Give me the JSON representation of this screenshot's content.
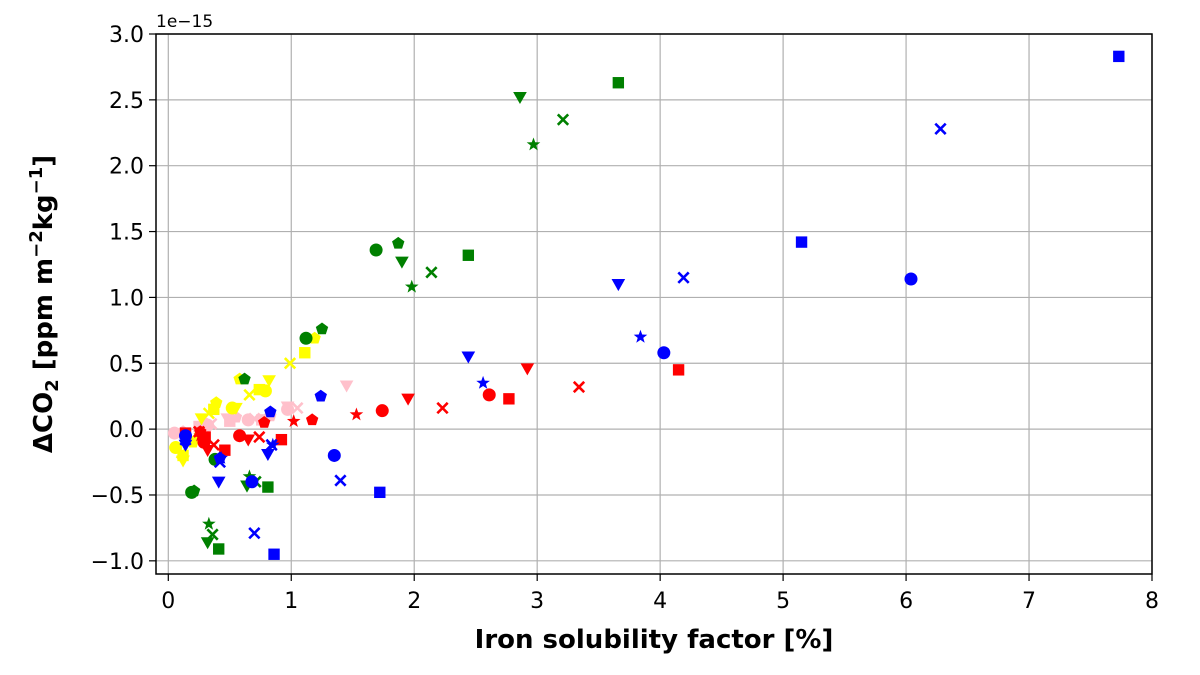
{
  "chart_data": {
    "type": "scatter",
    "title": "",
    "xlabel": "Iron solubility factor [%]",
    "ylabel_parts": [
      "ΔCO",
      "2",
      " [ppm m",
      "−2",
      "kg",
      "−1",
      "]"
    ],
    "y_offset_label": "1e−15",
    "xlim": [
      -0.1,
      8.0
    ],
    "ylim": [
      -1.1,
      3.0
    ],
    "x_ticks": [
      0,
      1,
      2,
      3,
      4,
      5,
      6,
      7,
      8
    ],
    "x_tick_labels": [
      "0",
      "1",
      "2",
      "3",
      "4",
      "5",
      "6",
      "7",
      "8"
    ],
    "y_ticks": [
      -1.0,
      -0.5,
      0.0,
      0.5,
      1.0,
      1.5,
      2.0,
      2.5,
      3.0
    ],
    "y_tick_labels": [
      "−1.0",
      "−0.5",
      "0.0",
      "0.5",
      "1.0",
      "1.5",
      "2.0",
      "2.5",
      "3.0"
    ],
    "grid": true,
    "legend": "none",
    "colors": {
      "blue": "#0000ff",
      "green": "#008000",
      "red": "#ff0000",
      "yellow": "#ffff00",
      "pink": "#ffc0cb"
    },
    "series": [
      {
        "color": "blue",
        "marker": "square",
        "points": [
          [
            7.73,
            2.83
          ],
          [
            5.15,
            1.42
          ],
          [
            1.72,
            -0.48
          ],
          [
            0.86,
            -0.95
          ]
        ]
      },
      {
        "color": "blue",
        "marker": "x",
        "points": [
          [
            6.28,
            2.28
          ],
          [
            4.19,
            1.15
          ],
          [
            1.4,
            -0.39
          ],
          [
            0.7,
            -0.79
          ],
          [
            0.84,
            -0.12
          ],
          [
            0.42,
            -0.25
          ],
          [
            0.14,
            -0.08
          ]
        ]
      },
      {
        "color": "blue",
        "marker": "circle",
        "points": [
          [
            6.04,
            1.14
          ],
          [
            4.03,
            0.58
          ],
          [
            1.35,
            -0.2
          ],
          [
            0.68,
            -0.4
          ],
          [
            0.14,
            -0.05
          ]
        ]
      },
      {
        "color": "blue",
        "marker": "triangle-down",
        "points": [
          [
            3.66,
            1.1
          ],
          [
            2.44,
            0.55
          ],
          [
            0.81,
            -0.19
          ],
          [
            0.41,
            -0.4
          ],
          [
            0.14,
            -0.12
          ]
        ]
      },
      {
        "color": "blue",
        "marker": "star",
        "points": [
          [
            3.84,
            0.7
          ],
          [
            2.56,
            0.35
          ],
          [
            0.85,
            -0.12
          ],
          [
            0.43,
            -0.22
          ]
        ]
      },
      {
        "color": "blue",
        "marker": "pentagon",
        "points": [
          [
            1.24,
            0.25
          ],
          [
            0.83,
            0.13
          ],
          [
            0.42,
            -0.22
          ]
        ]
      },
      {
        "color": "green",
        "marker": "square",
        "points": [
          [
            3.66,
            2.63
          ],
          [
            2.44,
            1.32
          ],
          [
            0.81,
            -0.44
          ],
          [
            0.41,
            -0.91
          ]
        ]
      },
      {
        "color": "green",
        "marker": "triangle-down",
        "points": [
          [
            2.86,
            2.52
          ],
          [
            1.9,
            1.27
          ],
          [
            0.64,
            -0.43
          ],
          [
            0.32,
            -0.86
          ]
        ]
      },
      {
        "color": "green",
        "marker": "x",
        "points": [
          [
            3.21,
            2.35
          ],
          [
            2.14,
            1.19
          ],
          [
            0.71,
            -0.4
          ],
          [
            0.36,
            -0.8
          ]
        ]
      },
      {
        "color": "green",
        "marker": "star",
        "points": [
          [
            2.97,
            2.16
          ],
          [
            1.98,
            1.08
          ],
          [
            0.66,
            -0.36
          ],
          [
            0.33,
            -0.72
          ]
        ]
      },
      {
        "color": "green",
        "marker": "circle",
        "points": [
          [
            1.69,
            1.36
          ],
          [
            1.12,
            0.69
          ],
          [
            0.38,
            -0.23
          ],
          [
            0.19,
            -0.48
          ]
        ]
      },
      {
        "color": "green",
        "marker": "pentagon",
        "points": [
          [
            1.87,
            1.41
          ],
          [
            1.25,
            0.76
          ],
          [
            0.62,
            0.38
          ],
          [
            0.21,
            -0.47
          ]
        ]
      },
      {
        "color": "red",
        "marker": "square",
        "points": [
          [
            4.15,
            0.45
          ],
          [
            2.77,
            0.23
          ],
          [
            0.92,
            -0.08
          ],
          [
            0.46,
            -0.16
          ],
          [
            0.3,
            -0.06
          ],
          [
            0.14,
            -0.03
          ]
        ]
      },
      {
        "color": "red",
        "marker": "x",
        "points": [
          [
            3.34,
            0.32
          ],
          [
            2.23,
            0.16
          ],
          [
            0.74,
            -0.06
          ],
          [
            0.37,
            -0.12
          ],
          [
            0.25,
            -0.02
          ]
        ]
      },
      {
        "color": "red",
        "marker": "triangle-down",
        "points": [
          [
            2.92,
            0.46
          ],
          [
            1.95,
            0.23
          ],
          [
            0.65,
            -0.08
          ],
          [
            0.32,
            -0.16
          ]
        ]
      },
      {
        "color": "red",
        "marker": "circle",
        "points": [
          [
            2.61,
            0.26
          ],
          [
            1.74,
            0.14
          ],
          [
            0.58,
            -0.05
          ],
          [
            0.29,
            -0.1
          ]
        ]
      },
      {
        "color": "red",
        "marker": "star",
        "points": [
          [
            1.53,
            0.11
          ],
          [
            1.02,
            0.06
          ],
          [
            0.26,
            -0.05
          ]
        ]
      },
      {
        "color": "red",
        "marker": "pentagon",
        "points": [
          [
            1.17,
            0.07
          ],
          [
            0.78,
            0.05
          ],
          [
            0.26,
            -0.02
          ]
        ]
      },
      {
        "color": "yellow",
        "marker": "square",
        "points": [
          [
            1.11,
            0.58
          ],
          [
            0.74,
            0.3
          ],
          [
            0.37,
            0.15
          ],
          [
            0.12,
            -0.2
          ]
        ]
      },
      {
        "color": "yellow",
        "marker": "x",
        "points": [
          [
            0.99,
            0.5
          ],
          [
            0.66,
            0.26
          ],
          [
            0.33,
            0.12
          ],
          [
            0.11,
            -0.18
          ]
        ]
      },
      {
        "color": "yellow",
        "marker": "triangle-down",
        "points": [
          [
            0.82,
            0.37
          ],
          [
            0.55,
            0.16
          ],
          [
            0.27,
            0.08
          ],
          [
            0.12,
            -0.24
          ]
        ]
      },
      {
        "color": "yellow",
        "marker": "pentagon",
        "points": [
          [
            1.19,
            0.69
          ],
          [
            0.58,
            0.38
          ],
          [
            0.39,
            0.2
          ],
          [
            0.2,
            -0.1
          ]
        ]
      },
      {
        "color": "yellow",
        "marker": "circle",
        "points": [
          [
            0.79,
            0.29
          ],
          [
            0.52,
            0.16
          ],
          [
            0.26,
            -0.05
          ],
          [
            0.06,
            -0.14
          ]
        ]
      },
      {
        "color": "pink",
        "marker": "triangle-down",
        "points": [
          [
            1.45,
            0.33
          ],
          [
            0.97,
            0.17
          ],
          [
            0.48,
            0.08
          ],
          [
            0.14,
            -0.04
          ]
        ]
      },
      {
        "color": "pink",
        "marker": "x",
        "points": [
          [
            1.05,
            0.16
          ],
          [
            0.7,
            0.08
          ],
          [
            0.35,
            0.04
          ],
          [
            0.08,
            -0.03
          ]
        ]
      },
      {
        "color": "pink",
        "marker": "circle",
        "points": [
          [
            0.97,
            0.15
          ],
          [
            0.65,
            0.07
          ],
          [
            0.32,
            0.03
          ],
          [
            0.05,
            -0.03
          ]
        ]
      },
      {
        "color": "pink",
        "marker": "pentagon",
        "points": [
          [
            0.83,
            0.1
          ],
          [
            0.55,
            0.09
          ],
          [
            0.31,
            0.04
          ],
          [
            0.12,
            -0.02
          ]
        ]
      },
      {
        "color": "pink",
        "marker": "square",
        "points": [
          [
            0.76,
            0.07
          ],
          [
            0.5,
            0.06
          ],
          [
            0.25,
            0.02
          ]
        ]
      }
    ]
  }
}
